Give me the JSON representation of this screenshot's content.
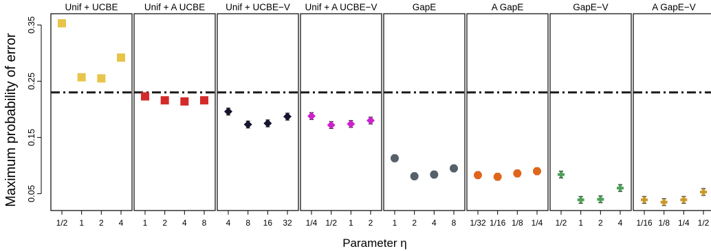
{
  "chart_data": {
    "type": "scatter",
    "ylabel": "Maximum probability of error",
    "xlabel": "Parameter η",
    "ylim": [
      0.02,
      0.37
    ],
    "yticks": [
      "0.05",
      "0.15",
      "0.25",
      "0.35"
    ],
    "reference_line": 0.23,
    "colors": {
      "axis": "#000000",
      "refline": "#1a1a1a",
      "errorbar": "#111111"
    },
    "panels": [
      {
        "title": "Unif + UCBE",
        "categories": [
          "1/2",
          "1",
          "2",
          "4"
        ],
        "values": [
          0.353,
          0.257,
          0.255,
          0.292
        ],
        "marker": "square",
        "color": "#e8c44a"
      },
      {
        "title": "Unif + A UCBE",
        "categories": [
          "1",
          "2",
          "4",
          "8"
        ],
        "values": [
          0.223,
          0.216,
          0.214,
          0.216
        ],
        "marker": "square",
        "color": "#d42a2a"
      },
      {
        "title": "Unif + UCBE−V",
        "categories": [
          "4",
          "8",
          "16",
          "32"
        ],
        "values": [
          0.196,
          0.173,
          0.175,
          0.187
        ],
        "marker": "diamond",
        "color": "#15152e"
      },
      {
        "title": "Unif + A UCBE−V",
        "categories": [
          "1/4",
          "1/2",
          "1",
          "2"
        ],
        "values": [
          0.188,
          0.172,
          0.174,
          0.18
        ],
        "marker": "diamond",
        "color": "#cc22cc"
      },
      {
        "title": "GapE",
        "categories": [
          "1",
          "2",
          "4",
          "8"
        ],
        "values": [
          0.113,
          0.081,
          0.084,
          0.095
        ],
        "marker": "circle",
        "color": "#55606a"
      },
      {
        "title": "A GapE",
        "categories": [
          "1/32",
          "1/16",
          "1/8",
          "1/4"
        ],
        "values": [
          0.083,
          0.08,
          0.086,
          0.09
        ],
        "marker": "circle",
        "color": "#e0661c"
      },
      {
        "title": "GapE−V",
        "categories": [
          "1/2",
          "1",
          "2",
          "4"
        ],
        "values": [
          0.084,
          0.039,
          0.04,
          0.06
        ],
        "marker": "plus",
        "color": "#4fa05a"
      },
      {
        "title": "A GapE−V",
        "categories": [
          "1/16",
          "1/8",
          "1/4",
          "1/2"
        ],
        "values": [
          0.039,
          0.035,
          0.039,
          0.053
        ],
        "marker": "plus",
        "color": "#c99a2a"
      }
    ]
  }
}
